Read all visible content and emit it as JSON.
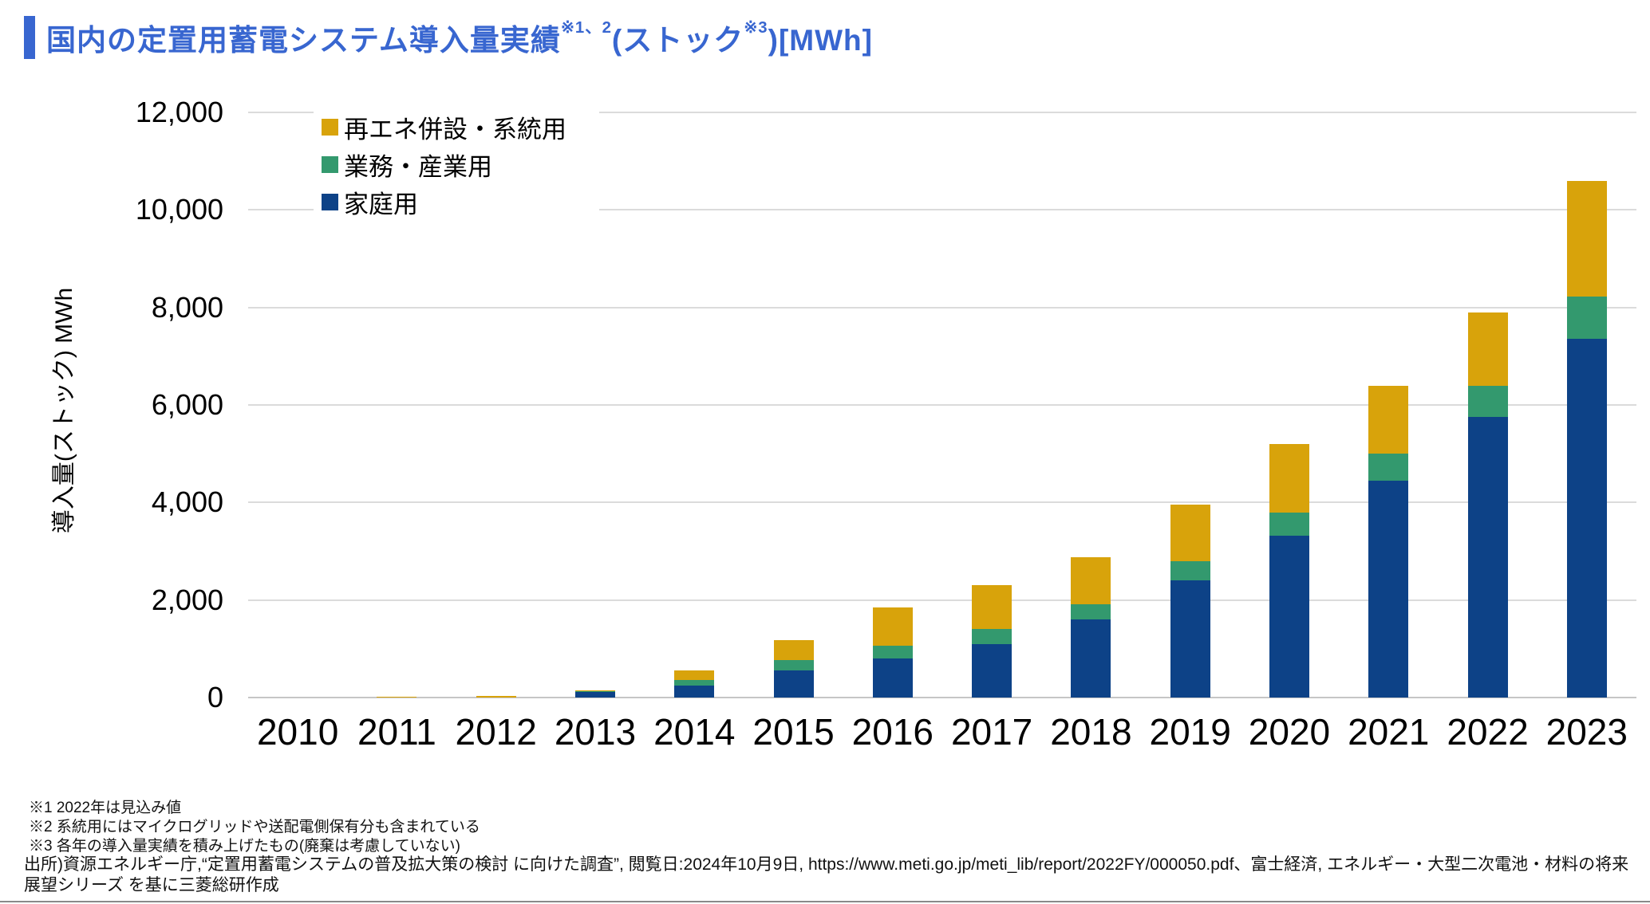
{
  "page": {
    "title": {
      "part1": "国内の定置用蓄電システム導入量実績",
      "sup1": "※1、2",
      "part2": "(ストック",
      "sup2": "※3",
      "part3": ")[MWh]"
    },
    "accent_color": "#3866D0"
  },
  "chart_data": {
    "type": "bar",
    "stacked": true,
    "title": "国内の定置用蓄電システム導入量実績(ストック)[MWh]",
    "xlabel": "",
    "ylabel": "導入量(ストック) MWh",
    "ylim": [
      0,
      12000
    ],
    "grid": true,
    "legend_position": "top-left-inside",
    "y_ticks": [
      0,
      2000,
      4000,
      6000,
      8000,
      10000,
      12000
    ],
    "y_tick_labels": [
      "0",
      "2,000",
      "4,000",
      "6,000",
      "8,000",
      "10,000",
      "12,000"
    ],
    "categories": [
      "2010",
      "2011",
      "2012",
      "2013",
      "2014",
      "2015",
      "2016",
      "2017",
      "2018",
      "2019",
      "2020",
      "2021",
      "2022",
      "2023"
    ],
    "series": [
      {
        "name": "家庭用",
        "color": "#0D4287",
        "values": [
          0,
          0,
          0,
          110,
          240,
          550,
          800,
          1100,
          1600,
          2400,
          3320,
          4450,
          5750,
          7350
        ]
      },
      {
        "name": "業務・産業用",
        "color": "#33996E",
        "values": [
          0,
          0,
          0,
          30,
          120,
          220,
          270,
          300,
          320,
          400,
          480,
          550,
          650,
          880
        ]
      },
      {
        "name": "再エネ併設・系統用",
        "color": "#D8A30B",
        "values": [
          0,
          20,
          25,
          15,
          200,
          410,
          770,
          900,
          950,
          1150,
          1400,
          1400,
          1500,
          2370
        ]
      }
    ],
    "legend_order": [
      "再エネ併設・系統用",
      "業務・産業用",
      "家庭用"
    ]
  },
  "footnotes": [
    "※1  2022年は見込み値",
    "※2  系統用にはマイクログリッドや送配電側保有分も含まれている",
    "※3  各年の導入量実績を積み上げたもの(廃棄は考慮していない)"
  ],
  "source": "出所)資源エネルギー庁,“定置用蓄電システムの普及拡大策の検討 に向けた調査”, 閲覧日:2024年10月9日, https://www.meti.go.jp/meti_lib/report/2022FY/000050.pdf、富士経済, エネルギー・大型二次電池・材料の将来展望シリーズ を基に三菱総研作成"
}
